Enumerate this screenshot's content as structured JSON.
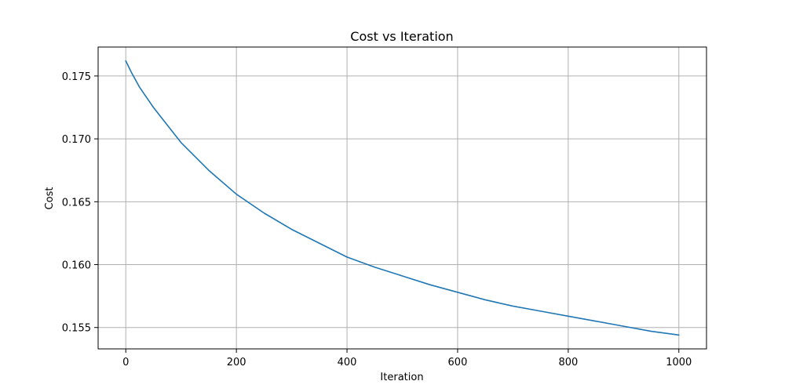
{
  "chart_data": {
    "type": "line",
    "title": "Cost vs Iteration",
    "xlabel": "Iteration",
    "ylabel": "Cost",
    "xlim": [
      -50,
      1050
    ],
    "ylim": [
      0.1533,
      0.1773
    ],
    "grid": true,
    "x_ticks": [
      0,
      200,
      400,
      600,
      800,
      1000
    ],
    "x_tick_labels": [
      "0",
      "200",
      "400",
      "600",
      "800",
      "1000"
    ],
    "y_ticks": [
      0.155,
      0.16,
      0.165,
      0.17,
      0.175
    ],
    "y_tick_labels": [
      "0.155",
      "0.160",
      "0.165",
      "0.170",
      "0.175"
    ],
    "series": [
      {
        "color": "#1f77b4",
        "x": [
          0,
          10,
          25,
          50,
          75,
          100,
          150,
          200,
          250,
          300,
          350,
          400,
          450,
          500,
          550,
          600,
          650,
          700,
          750,
          800,
          850,
          900,
          950,
          1000
        ],
        "y": [
          0.1762,
          0.1753,
          0.1741,
          0.1725,
          0.1711,
          0.1697,
          0.1675,
          0.1656,
          0.1641,
          0.1628,
          0.1617,
          0.1606,
          0.1598,
          0.1591,
          0.1584,
          0.1578,
          0.1572,
          0.1567,
          0.1563,
          0.1559,
          0.1555,
          0.1551,
          0.1547,
          0.1544
        ]
      }
    ]
  }
}
